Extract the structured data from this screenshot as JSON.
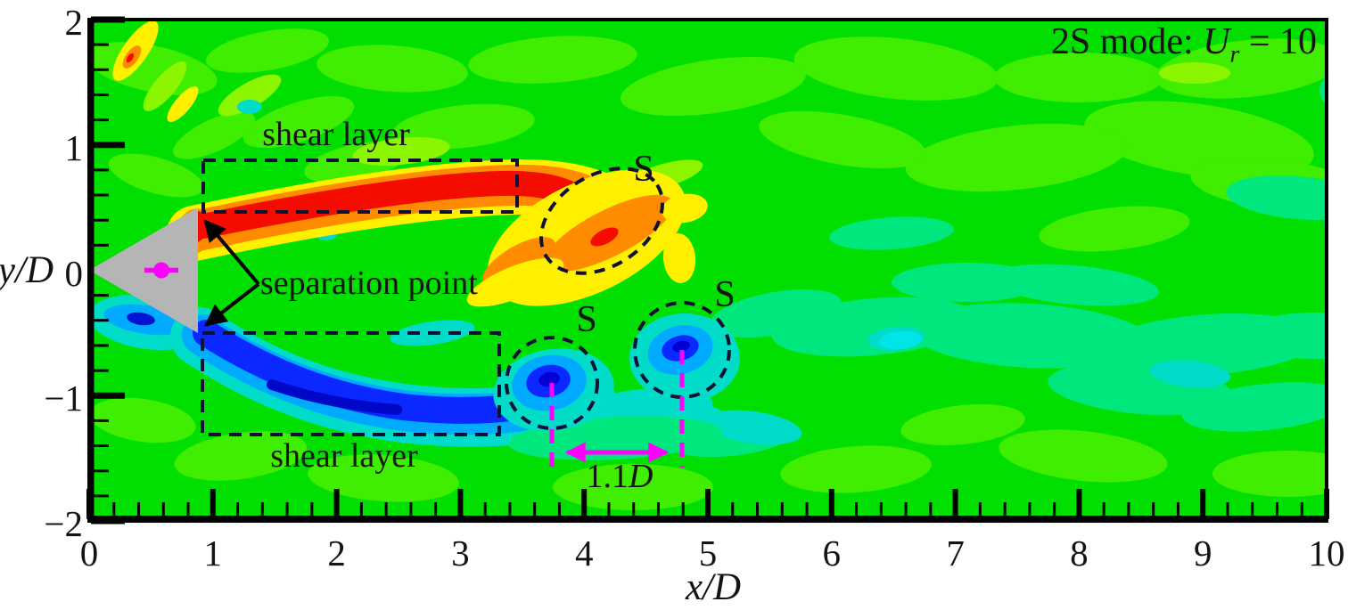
{
  "figure": {
    "mode_label": {
      "prefix": "2S mode: ",
      "variable": "U",
      "subscript": "r",
      "suffix": " = 10"
    },
    "annotations": {
      "shear_layer_top": "shear layer",
      "shear_layer_bottom": "shear layer",
      "separation_point": "separation point",
      "vortex_labels": [
        "S",
        "S",
        "S"
      ],
      "spacing": {
        "value": "1.1",
        "variable": "D"
      }
    },
    "axes": {
      "x": {
        "label": "x/D",
        "min": 0,
        "max": 10,
        "tick_labels": [
          "0",
          "1",
          "2",
          "3",
          "4",
          "5",
          "6",
          "7",
          "8",
          "9",
          "10"
        ],
        "tick_values": [
          0,
          1,
          2,
          3,
          4,
          5,
          6,
          7,
          8,
          9,
          10
        ],
        "minor_step": 0.2
      },
      "y": {
        "label": "y/D",
        "min": -2,
        "max": 2,
        "tick_labels": [
          "2",
          "1",
          "0",
          "−1",
          "−2"
        ],
        "tick_values": [
          2,
          1,
          0,
          -1,
          -2
        ],
        "minor_step": 0.2
      }
    },
    "palette": {
      "positive_max_red": "#F50C00",
      "orange": "#FF8C00",
      "yellow": "#FFF000",
      "zero_green": "#00DF00",
      "spring_green": "#00E87D",
      "cyan": "#00E6E6",
      "sky_blue": "#00AAFF",
      "blue": "#0A28FF",
      "negative_max_blue": "#0000D2",
      "body_gray": "#B5B5B5",
      "annotation_magenta": "#FF00FF",
      "dash_color": "#101035"
    }
  },
  "chart_data": {
    "type": "heatmap",
    "title": "2S mode: Ur = 10",
    "xlabel": "x/D",
    "ylabel": "y/D",
    "xlim": [
      0,
      10
    ],
    "ylim": [
      -2,
      2
    ],
    "field": "instantaneous vorticity contours behind a triangular prism (rainbow colormap: blue = negative, green = zero, red = positive)",
    "legend_position": "top-right",
    "grid": false,
    "features": [
      {
        "name": "triangular prism body",
        "type": "bluff-body",
        "apex": [
          0,
          0
        ],
        "base_x": 0.88,
        "corners_y": [
          0.5,
          -0.5
        ],
        "marker": "magenta center dot"
      },
      {
        "name": "upper shear layer",
        "vorticity": "positive (red)",
        "x_extent": [
          0.9,
          3.6
        ],
        "y_center": 0.6,
        "boxed": true
      },
      {
        "name": "lower shear layer",
        "vorticity": "negative (blue)",
        "x_extent": [
          0.9,
          3.7
        ],
        "y_center": -0.8,
        "boxed": true
      },
      {
        "name": "separation points",
        "locations": [
          [
            0.88,
            0.5
          ],
          [
            0.88,
            -0.5
          ]
        ]
      },
      {
        "name": "shed vortex S (upper)",
        "vorticity": "positive (orange)",
        "center": [
          4.1,
          0.4
        ],
        "outline": "dashed ellipse"
      },
      {
        "name": "shed vortex S (lower 1)",
        "vorticity": "negative (blue)",
        "center": [
          3.74,
          -0.9
        ],
        "outline": "dashed circle"
      },
      {
        "name": "shed vortex S (lower 2)",
        "vorticity": "negative (blue)",
        "center": [
          4.79,
          -0.64
        ],
        "outline": "dashed circle"
      },
      {
        "name": "streamwise vortex spacing",
        "value": "1.1D",
        "between_x": [
          3.74,
          4.79
        ]
      }
    ]
  }
}
